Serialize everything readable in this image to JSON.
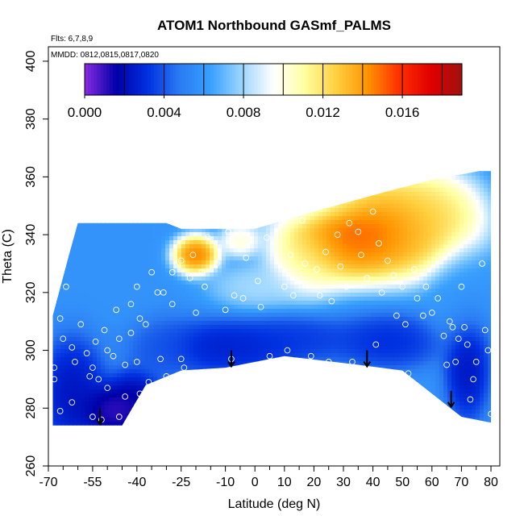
{
  "chart_data": {
    "type": "heatmap",
    "title": "ATOM1 Northbound GASmf_PALMS",
    "annotations": [
      "Flts: 6,7,8,9",
      "MMDD: 0812,0815,0817,0820"
    ],
    "xlabel": "Latitude (deg N)",
    "ylabel": "Theta (C)",
    "xlim": [
      -70,
      83
    ],
    "ylim": [
      260,
      405
    ],
    "x_tick_labels": [
      -70,
      -55,
      -40,
      -25,
      -10,
      0,
      10,
      20,
      30,
      40,
      50,
      60,
      70,
      80
    ],
    "x_minor_ticks": [
      -65,
      -60,
      -50,
      -45,
      -35,
      -30,
      -20,
      -15,
      -5,
      5,
      15,
      25,
      35,
      45,
      55,
      65,
      75
    ],
    "y_ticks": [
      260,
      280,
      300,
      320,
      340,
      360,
      380,
      400
    ],
    "grid": false,
    "colorbar": {
      "position": "top",
      "range": [
        0.0,
        0.019
      ],
      "tick_values": [
        0.0,
        0.004,
        0.008,
        0.012,
        0.016
      ],
      "tick_labels": [
        "0.000",
        "0.004",
        "0.008",
        "0.012",
        "0.016"
      ],
      "boundaries": [
        0.002,
        0.004,
        0.006,
        0.008,
        0.01,
        0.012,
        0.014,
        0.016,
        0.018
      ],
      "colors": [
        "#8a2be2",
        "#0000a8",
        "#0030e0",
        "#2a7af2",
        "#38a0ff",
        "#9cd6ff",
        "#ffffff",
        "#ffffa0",
        "#ffd040",
        "#ff9400",
        "#ff3000",
        "#e00000",
        "#a01010"
      ]
    },
    "domain_boundary": {
      "bottom": [
        [
          -68.5,
          274
        ],
        [
          -45,
          274
        ],
        [
          -37,
          288
        ],
        [
          -25,
          293
        ],
        [
          -10,
          294
        ],
        [
          10,
          298
        ],
        [
          35,
          295
        ],
        [
          50,
          293
        ],
        [
          70,
          277
        ],
        [
          80,
          275
        ]
      ],
      "top": [
        [
          -68.5,
          312
        ],
        [
          -63,
          333
        ],
        [
          -60,
          344
        ],
        [
          -30,
          344
        ],
        [
          -25,
          342
        ],
        [
          0,
          342
        ],
        [
          20,
          348
        ],
        [
          45,
          355
        ],
        [
          60,
          359
        ],
        [
          76,
          362
        ],
        [
          80,
          362
        ]
      ]
    },
    "field_features": [
      {
        "lat": 40,
        "theta": 342,
        "value": 0.0175,
        "sx": 13,
        "sy": 8
      },
      {
        "lat": 30,
        "theta": 338,
        "value": 0.0155,
        "sx": 10,
        "sy": 7
      },
      {
        "lat": 50,
        "theta": 343,
        "value": 0.0135,
        "sx": 12,
        "sy": 9
      },
      {
        "lat": 60,
        "theta": 346,
        "value": 0.0125,
        "sx": 9,
        "sy": 8
      },
      {
        "lat": 18,
        "theta": 332,
        "value": 0.0115,
        "sx": 7,
        "sy": 7
      },
      {
        "lat": -20,
        "theta": 333,
        "value": 0.0165,
        "sx": 4,
        "sy": 3.5
      },
      {
        "lat": -5,
        "theta": 338,
        "value": 0.011,
        "sx": 3.5,
        "sy": 3
      },
      {
        "lat": 15,
        "theta": 350,
        "value": 0.009,
        "sx": 15,
        "sy": 4
      },
      {
        "lat": -62,
        "theta": 285,
        "value": 0.0015,
        "sx": 6,
        "sy": 10
      },
      {
        "lat": -48,
        "theta": 279,
        "value": 0.0,
        "sx": 6,
        "sy": 5
      },
      {
        "lat": -40,
        "theta": 282,
        "value": 0.001,
        "sx": 5,
        "sy": 6
      },
      {
        "lat": -10,
        "theta": 301,
        "value": 0.002,
        "sx": 14,
        "sy": 5
      },
      {
        "lat": 15,
        "theta": 304,
        "value": 0.003,
        "sx": 10,
        "sy": 4
      },
      {
        "lat": 45,
        "theta": 303,
        "value": 0.0025,
        "sx": 10,
        "sy": 5
      },
      {
        "lat": 72,
        "theta": 295,
        "value": 0.0015,
        "sx": 4,
        "sy": 10
      },
      {
        "lat": -30,
        "theta": 300,
        "value": 0.004,
        "sx": 6,
        "sy": 6
      },
      {
        "lat": 0,
        "theta": 322,
        "value": 0.0085,
        "sx": 8,
        "sy": 4
      },
      {
        "lat": 70,
        "theta": 320,
        "value": 0.006,
        "sx": 6,
        "sy": 10
      }
    ],
    "observation_points": [
      [
        -68,
        294
      ],
      [
        -68,
        290
      ],
      [
        -66,
        311
      ],
      [
        -66,
        279
      ],
      [
        -65,
        304
      ],
      [
        -64,
        322
      ],
      [
        -62,
        301
      ],
      [
        -62,
        282
      ],
      [
        -61,
        296
      ],
      [
        -59,
        309
      ],
      [
        -57,
        299
      ],
      [
        -56,
        291
      ],
      [
        -55,
        294
      ],
      [
        -55,
        277
      ],
      [
        -54,
        303
      ],
      [
        -53,
        290
      ],
      [
        -52,
        276
      ],
      [
        -51,
        307
      ],
      [
        -50,
        300
      ],
      [
        -50,
        287
      ],
      [
        -48,
        298
      ],
      [
        -47,
        314
      ],
      [
        -46,
        304
      ],
      [
        -46,
        277
      ],
      [
        -44,
        295
      ],
      [
        -44,
        284
      ],
      [
        -42,
        316
      ],
      [
        -42,
        306
      ],
      [
        -40,
        322
      ],
      [
        -40,
        296
      ],
      [
        -39,
        311
      ],
      [
        -39,
        285
      ],
      [
        -37,
        309
      ],
      [
        -36,
        289
      ],
      [
        -35,
        327
      ],
      [
        -33,
        320
      ],
      [
        -32,
        297
      ],
      [
        -31,
        320
      ],
      [
        -30,
        291
      ],
      [
        -28,
        327
      ],
      [
        -28,
        316
      ],
      [
        -25,
        331
      ],
      [
        -25,
        297
      ],
      [
        -24,
        294
      ],
      [
        -22,
        325
      ],
      [
        -21,
        333
      ],
      [
        -20,
        313
      ],
      [
        -18,
        327
      ],
      [
        -17,
        322
      ],
      [
        -16,
        339
      ],
      [
        -13,
        330
      ],
      [
        -11,
        345
      ],
      [
        -10,
        314
      ],
      [
        -9,
        341
      ],
      [
        -8,
        297
      ],
      [
        -7,
        319
      ],
      [
        -5,
        340
      ],
      [
        -4,
        318
      ],
      [
        -3,
        332
      ],
      [
        -2,
        346
      ],
      [
        1,
        324
      ],
      [
        2,
        315
      ],
      [
        4,
        339
      ],
      [
        5,
        298
      ],
      [
        8,
        346
      ],
      [
        10,
        322
      ],
      [
        11,
        300
      ],
      [
        12,
        333
      ],
      [
        13,
        319
      ],
      [
        16,
        345
      ],
      [
        17,
        330
      ],
      [
        19,
        298
      ],
      [
        21,
        328
      ],
      [
        22,
        319
      ],
      [
        24,
        334
      ],
      [
        25,
        296
      ],
      [
        26,
        317
      ],
      [
        28,
        340
      ],
      [
        29,
        329
      ],
      [
        31,
        322
      ],
      [
        32,
        344
      ],
      [
        33,
        296
      ],
      [
        35,
        341
      ],
      [
        36,
        333
      ],
      [
        38,
        325
      ],
      [
        40,
        348
      ],
      [
        41,
        302
      ],
      [
        42,
        337
      ],
      [
        43,
        320
      ],
      [
        45,
        331
      ],
      [
        47,
        326
      ],
      [
        48,
        312
      ],
      [
        50,
        322
      ],
      [
        51,
        309
      ],
      [
        52,
        292
      ],
      [
        54,
        328
      ],
      [
        55,
        318
      ],
      [
        57,
        312
      ],
      [
        58,
        322
      ],
      [
        60,
        313
      ],
      [
        62,
        318
      ],
      [
        64,
        305
      ],
      [
        65,
        295
      ],
      [
        66,
        310
      ],
      [
        67,
        308
      ],
      [
        68,
        296
      ],
      [
        69,
        304
      ],
      [
        70,
        322
      ],
      [
        71,
        308
      ],
      [
        72,
        302
      ],
      [
        73,
        283
      ],
      [
        74,
        290
      ],
      [
        75,
        296
      ],
      [
        76,
        347
      ],
      [
        77,
        330
      ],
      [
        78,
        307
      ],
      [
        79,
        300
      ],
      [
        80,
        278
      ]
    ],
    "arrows": [
      {
        "lat": -52.5,
        "theta": 280
      },
      {
        "lat": -8,
        "theta": 300
      },
      {
        "lat": 38,
        "theta": 300
      },
      {
        "lat": 66.5,
        "theta": 286
      }
    ]
  }
}
